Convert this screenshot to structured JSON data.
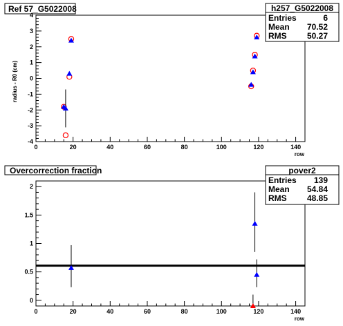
{
  "chart_data": [
    {
      "type": "scatter",
      "title": "Ref 57_G5022008",
      "xlabel": "row",
      "ylabel": "radius - R0 (cm)",
      "xlim": [
        0,
        145
      ],
      "ylim": [
        -4,
        4
      ],
      "x_ticks": [
        0,
        20,
        40,
        60,
        80,
        100,
        120,
        140
      ],
      "y_ticks": [
        -4,
        -3,
        -2,
        -1,
        0,
        1,
        2,
        3,
        4
      ],
      "series": [
        {
          "marker": "open-circle",
          "color": "#ff0000",
          "points": [
            {
              "x": 15,
              "y": -1.8
            },
            {
              "x": 16,
              "y": -3.6
            },
            {
              "x": 18,
              "y": 0.1
            },
            {
              "x": 19,
              "y": 2.5
            },
            {
              "x": 116,
              "y": -0.5
            },
            {
              "x": 117,
              "y": 0.5
            },
            {
              "x": 118,
              "y": 1.5
            },
            {
              "x": 119,
              "y": 2.7
            }
          ]
        },
        {
          "marker": "filled-triangle",
          "color": "#0000ff",
          "points": [
            {
              "x": 15,
              "y": -1.8,
              "err": 0.0
            },
            {
              "x": 16,
              "y": -1.9,
              "err": 1.2
            },
            {
              "x": 18,
              "y": 0.3,
              "err": 0.0
            },
            {
              "x": 19,
              "y": 2.4,
              "err": 0.0
            },
            {
              "x": 116,
              "y": -0.4,
              "err": 0.0
            },
            {
              "x": 117,
              "y": 0.4,
              "err": 0.0
            },
            {
              "x": 118,
              "y": 1.4,
              "err": 0.0
            },
            {
              "x": 119,
              "y": 2.6,
              "err": 0.0
            }
          ]
        }
      ],
      "stats": {
        "name": "h257_G5022008",
        "rows": [
          {
            "label": "Entries",
            "value": "6"
          },
          {
            "label": "Mean",
            "value": "70.52"
          },
          {
            "label": "RMS",
            "value": "50.27"
          }
        ]
      }
    },
    {
      "type": "scatter",
      "title": "Overcorrection fraction",
      "xlabel": "row",
      "ylabel": "",
      "xlim": [
        0,
        145
      ],
      "ylim": [
        -0.1,
        2.1
      ],
      "x_ticks": [
        0,
        20,
        40,
        60,
        80,
        100,
        120,
        140
      ],
      "y_ticks": [
        0,
        0.5,
        1,
        1.5,
        2
      ],
      "y_tick_labels": [
        "0",
        "0.5",
        "1",
        "1.5",
        "2"
      ],
      "reference_line": {
        "y": 0.61
      },
      "series": [
        {
          "marker": "filled-triangle",
          "color": "#0000ff",
          "points": [
            {
              "x": 19,
              "y": 0.57,
              "err_low": 0.34,
              "err_high": 0.4
            },
            {
              "x": 118,
              "y": 1.35,
              "err_low": 0.5,
              "err_high": 0.55
            },
            {
              "x": 119,
              "y": 0.45,
              "err_low": 0.22,
              "err_high": 0.27
            }
          ]
        },
        {
          "marker": "filled-triangle",
          "color": "#ff0000",
          "points": [
            {
              "x": 117,
              "y": -0.1,
              "err_low": 0.0,
              "err_high": 0.2
            }
          ]
        }
      ],
      "stats": {
        "name": "pover2",
        "rows": [
          {
            "label": "Entries",
            "value": "139"
          },
          {
            "label": "Mean",
            "value": "54.84"
          },
          {
            "label": "RMS",
            "value": "48.85"
          }
        ]
      }
    }
  ]
}
